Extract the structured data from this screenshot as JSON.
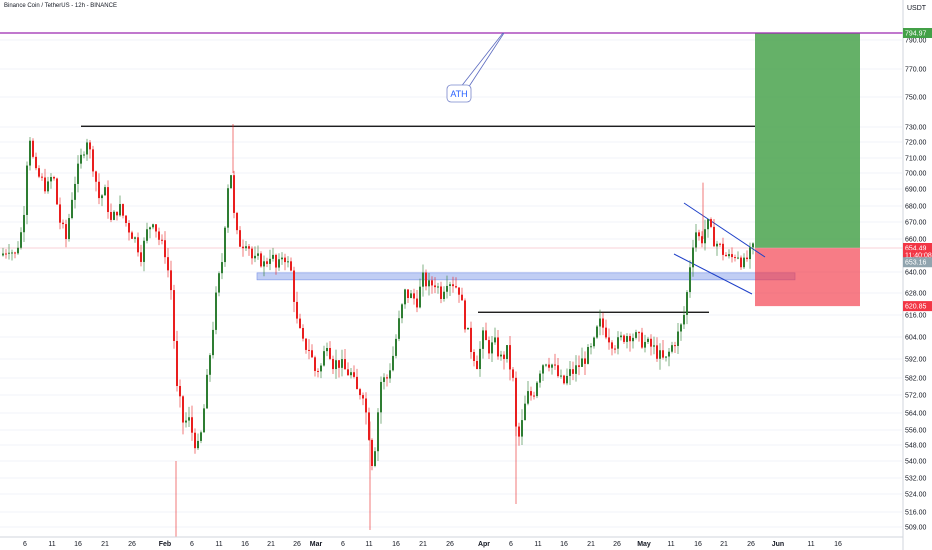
{
  "header": {
    "title": "Binance Coin / TetherUS - 12h - BINANCE"
  },
  "axis": {
    "currency": "USDT"
  },
  "colors": {
    "up": "#089981",
    "upBody": "#2e7d32",
    "down": "#e91e1e",
    "target": "#43a047",
    "stop": "#f23645",
    "zone": "#a7b9f0",
    "ath": "#9c27b0",
    "channel": "#1e40c8",
    "level": "#000000",
    "grid": "#f0f3fa"
  },
  "chart_data": {
    "type": "candlestick",
    "title": "Binance Coin / TetherUS - 12h - BINANCE",
    "ylim": [
      506,
      800
    ],
    "y_ticks": [
      "790.00",
      "770.00",
      "750.00",
      "730.00",
      "720.00",
      "710.00",
      "700.00",
      "690.00",
      "680.00",
      "670.00",
      "660.00",
      "640.00",
      "628.00",
      "616.00",
      "604.00",
      "592.00",
      "582.00",
      "572.00",
      "564.00",
      "556.00",
      "548.00",
      "540.00",
      "532.00",
      "524.00",
      "516.00",
      "509.00"
    ],
    "x_ticks": [
      "6",
      "11",
      "16",
      "21",
      "26",
      "Feb",
      "6",
      "11",
      "16",
      "21",
      "26",
      "Mar",
      "6",
      "11",
      "16",
      "21",
      "26",
      "Apr",
      "6",
      "11",
      "16",
      "21",
      "26",
      "May",
      "11",
      "16",
      "21",
      "26",
      "Jun",
      "11",
      "16"
    ],
    "badges": [
      {
        "label": "794.97",
        "price": 794.97,
        "color": "#43a047"
      },
      {
        "label": "654.49",
        "price": 654.49,
        "color": "#f23645"
      },
      {
        "label": "11:40:08",
        "price": 650.2,
        "color": "#f23645"
      },
      {
        "label": "653.16",
        "price": 645.9,
        "color": "#90a4ae"
      },
      {
        "label": "620.85",
        "price": 620.85,
        "color": "#f23645"
      }
    ],
    "annotations": [
      {
        "text": "ATH",
        "type": "callout",
        "price": 794.97
      },
      {
        "text": "",
        "type": "resistance",
        "price": 730.5
      },
      {
        "text": "",
        "type": "resistance",
        "price": 617.5
      },
      {
        "text": "",
        "type": "zone",
        "from": 635.5,
        "to": 639.5
      }
    ],
    "position": {
      "entry": 654.49,
      "target": 794.97,
      "stop": 620.85
    },
    "path": [
      [
        0,
        650
      ],
      [
        8,
        655
      ],
      [
        14,
        650
      ],
      [
        22,
        668
      ],
      [
        28,
        728
      ],
      [
        34,
        700
      ],
      [
        40,
        696
      ],
      [
        46,
        690
      ],
      [
        52,
        700
      ],
      [
        58,
        672
      ],
      [
        65,
        660
      ],
      [
        72,
        690
      ],
      [
        80,
        710
      ],
      [
        86,
        722
      ],
      [
        92,
        705
      ],
      [
        98,
        685
      ],
      [
        104,
        688
      ],
      [
        110,
        670
      ],
      [
        118,
        680
      ],
      [
        126,
        668
      ],
      [
        134,
        660
      ],
      [
        140,
        650
      ],
      [
        146,
        664
      ],
      [
        152,
        672
      ],
      [
        158,
        660
      ],
      [
        164,
        652
      ],
      [
        170,
        630
      ],
      [
        176,
        575
      ],
      [
        182,
        560
      ],
      [
        188,
        560
      ],
      [
        194,
        550
      ],
      [
        198,
        545
      ],
      [
        204,
        570
      ],
      [
        210,
        600
      ],
      [
        216,
        630
      ],
      [
        222,
        650
      ],
      [
        226,
        690
      ],
      [
        230,
        700
      ],
      [
        234,
        665
      ],
      [
        240,
        656
      ],
      [
        246,
        660
      ],
      [
        252,
        646
      ],
      [
        258,
        648
      ],
      [
        264,
        644
      ],
      [
        270,
        652
      ],
      [
        276,
        640
      ],
      [
        282,
        652
      ],
      [
        290,
        640
      ],
      [
        296,
        612
      ],
      [
        302,
        600
      ],
      [
        308,
        598
      ],
      [
        314,
        586
      ],
      [
        320,
        588
      ],
      [
        326,
        602
      ],
      [
        332,
        590
      ],
      [
        338,
        590
      ],
      [
        344,
        586
      ],
      [
        350,
        584
      ],
      [
        356,
        574
      ],
      [
        362,
        574
      ],
      [
        368,
        554
      ],
      [
        372,
        536
      ],
      [
        376,
        560
      ],
      [
        380,
        580
      ],
      [
        386,
        582
      ],
      [
        392,
        594
      ],
      [
        398,
        612
      ],
      [
        404,
        628
      ],
      [
        410,
        626
      ],
      [
        416,
        624
      ],
      [
        422,
        636
      ],
      [
        428,
        632
      ],
      [
        434,
        634
      ],
      [
        440,
        628
      ],
      [
        446,
        636
      ],
      [
        452,
        634
      ],
      [
        458,
        630
      ],
      [
        464,
        612
      ],
      [
        470,
        598
      ],
      [
        476,
        590
      ],
      [
        482,
        604
      ],
      [
        488,
        598
      ],
      [
        494,
        600
      ],
      [
        500,
        592
      ],
      [
        506,
        596
      ],
      [
        512,
        580
      ],
      [
        516,
        548
      ],
      [
        520,
        556
      ],
      [
        526,
        572
      ],
      [
        532,
        572
      ],
      [
        538,
        586
      ],
      [
        544,
        592
      ],
      [
        550,
        590
      ],
      [
        556,
        584
      ],
      [
        562,
        578
      ],
      [
        568,
        584
      ],
      [
        574,
        586
      ],
      [
        580,
        590
      ],
      [
        586,
        594
      ],
      [
        592,
        598
      ],
      [
        598,
        612
      ],
      [
        604,
        608
      ],
      [
        610,
        602
      ],
      [
        616,
        600
      ],
      [
        622,
        604
      ],
      [
        628,
        606
      ],
      [
        634,
        604
      ],
      [
        640,
        602
      ],
      [
        646,
        600
      ],
      [
        652,
        598
      ],
      [
        658,
        594
      ],
      [
        664,
        590
      ],
      [
        670,
        598
      ],
      [
        676,
        604
      ],
      [
        682,
        612
      ],
      [
        686,
        628
      ],
      [
        690,
        650
      ],
      [
        694,
        666
      ],
      [
        700,
        658
      ],
      [
        706,
        670
      ],
      [
        712,
        660
      ],
      [
        718,
        656
      ],
      [
        724,
        650
      ],
      [
        730,
        648
      ],
      [
        736,
        652
      ],
      [
        742,
        644
      ],
      [
        748,
        650
      ],
      [
        752,
        654
      ]
    ]
  }
}
